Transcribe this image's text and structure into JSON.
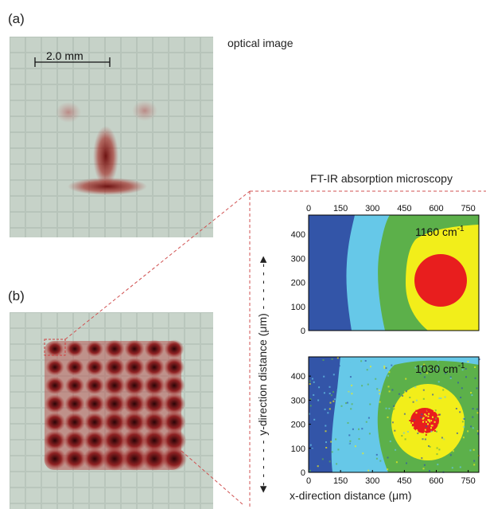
{
  "panel_a": {
    "label": "(a)",
    "scale_bar": "2.0  mm",
    "caption": "optical image"
  },
  "panel_b": {
    "label": "(b)"
  },
  "ftir": {
    "caption": "FT-IR absorption microscopy",
    "ylabel_prefix": "y-direction distance (",
    "ylabel_unit": "μm",
    "ylabel_suffix": ")",
    "xlabel_prefix": "x-direction distance (",
    "xlabel_unit": "μm",
    "xlabel_suffix": ")",
    "colors": {
      "level1": "#3355a8",
      "level2": "#66c8e8",
      "level3": "#5cb04a",
      "level4": "#f2ee1a",
      "level5": "#e81e1e"
    }
  },
  "chart_data": [
    {
      "type": "heatmap",
      "annotation_value": "1160 cm",
      "annotation_exp": "-1",
      "x_ticks": [
        0,
        150,
        300,
        450,
        600,
        750
      ],
      "y_ticks": [
        0,
        100,
        200,
        300,
        400
      ],
      "xlim": [
        0,
        800
      ],
      "ylim": [
        0,
        480
      ],
      "x_axis_position": "top"
    },
    {
      "type": "heatmap",
      "annotation_value": "1030 cm",
      "annotation_exp": "-1",
      "x_ticks": [
        0,
        150,
        300,
        450,
        600,
        750
      ],
      "y_ticks": [
        0,
        100,
        200,
        300,
        400
      ],
      "xlim": [
        0,
        800
      ],
      "ylim": [
        0,
        480
      ],
      "x_axis_position": "bottom"
    }
  ]
}
